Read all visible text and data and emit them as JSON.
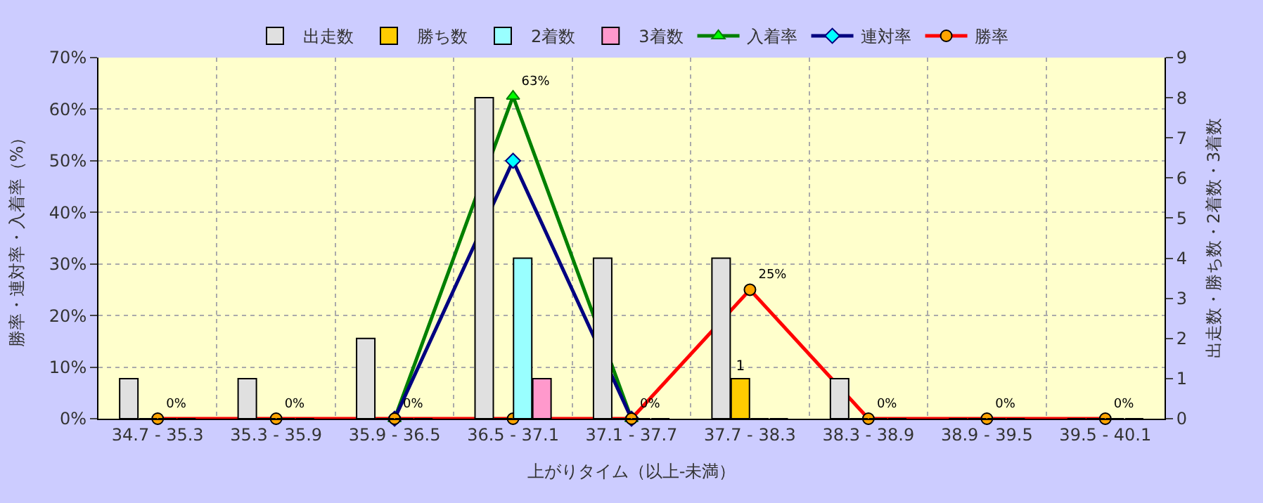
{
  "chart_data": {
    "type": "bar",
    "xlabel": "上がりタイム（以上-未満）",
    "ylabel": "勝率・連対率・入着率（%）",
    "y2label": "出走数・勝ち数・2着数・3着数",
    "categories": [
      "34.7 - 35.3",
      "35.3 - 35.9",
      "35.9 - 36.5",
      "36.5 - 37.1",
      "37.1 - 37.7",
      "37.7 - 38.3",
      "38.3 - 38.9",
      "38.9 - 39.5",
      "39.5 - 40.1"
    ],
    "series": [
      {
        "name": "出走数",
        "axis": "y2",
        "color": "#e0e0e0",
        "values": [
          1,
          1,
          2,
          8,
          4,
          4,
          1,
          0,
          0
        ]
      },
      {
        "name": "勝ち数",
        "axis": "y2",
        "color": "#ffcc00",
        "values": [
          0,
          0,
          0,
          0,
          0,
          1,
          0,
          0,
          0
        ],
        "value_labels": [
          null,
          null,
          null,
          null,
          null,
          "1",
          null,
          null,
          null
        ]
      },
      {
        "name": "2着数",
        "axis": "y2",
        "color": "#99ffff",
        "values": [
          0,
          0,
          0,
          4,
          0,
          0,
          0,
          0,
          0
        ]
      },
      {
        "name": "3着数",
        "axis": "y2",
        "color": "#ff99cc",
        "values": [
          0,
          0,
          0,
          1,
          0,
          0,
          0,
          0,
          0
        ]
      },
      {
        "name": "入着率",
        "type": "line",
        "color": "#008000",
        "marker": "triangle",
        "values": [
          null,
          null,
          0,
          62.5,
          0,
          null,
          null,
          null,
          null
        ],
        "value_labels": [
          null,
          null,
          null,
          "63%",
          null,
          null,
          null,
          null,
          null
        ]
      },
      {
        "name": "連対率",
        "type": "line",
        "color": "#000080",
        "marker": "diamond",
        "values": [
          null,
          null,
          0,
          50,
          0,
          null,
          null,
          null,
          null
        ]
      },
      {
        "name": "勝率",
        "type": "line",
        "color": "#ff0000",
        "marker": "circle",
        "values": [
          0,
          0,
          0,
          0,
          0,
          25,
          0,
          0,
          0
        ],
        "value_labels": [
          "0%",
          "0%",
          "0%",
          null,
          "0%",
          "25%",
          "0%",
          "0%",
          "0%"
        ]
      }
    ],
    "ylim": [
      0,
      70
    ],
    "yticks": [
      {
        "value": 0,
        "label": "0%"
      },
      {
        "value": 10,
        "label": "10%"
      },
      {
        "value": 20,
        "label": "20%"
      },
      {
        "value": 30,
        "label": "30%"
      },
      {
        "value": 40,
        "label": "40%"
      },
      {
        "value": 50,
        "label": "50%"
      },
      {
        "value": 60,
        "label": "60%"
      },
      {
        "value": 70,
        "label": "70%"
      }
    ],
    "y2lim": [
      0,
      9
    ],
    "y2ticks": [
      0,
      1,
      2,
      3,
      4,
      5,
      6,
      7,
      8,
      9
    ],
    "grid": true,
    "legend": "top"
  }
}
